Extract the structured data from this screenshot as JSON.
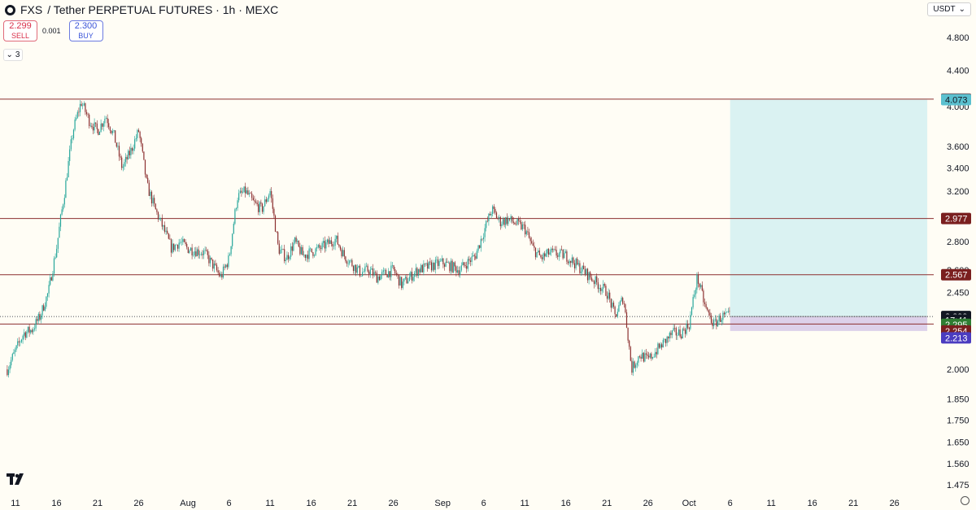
{
  "header": {
    "symbol": "FXS",
    "title_rest": "/ Tether PERPETUAL FUTURES · 1h · MEXC"
  },
  "trade": {
    "sell_price": "2.299",
    "sell_label": "SELL",
    "spread": "0.001",
    "buy_price": "2.300",
    "buy_label": "BUY"
  },
  "indicators": {
    "count": "3"
  },
  "currency": "USDT",
  "colors": {
    "background": "#fffdf5",
    "up": "#26a69a",
    "down": "#8b2f2f",
    "profit_zone": "#cdeef0",
    "stop_zone": "#d7c9e8",
    "level_line": "#8b2f2f"
  },
  "chart_data": {
    "type": "candlestick",
    "y_axis": {
      "scale": "log",
      "ticks": [
        "4.800",
        "4.400",
        "4.000",
        "3.600",
        "3.400",
        "3.200",
        "2.977",
        "2.800",
        "2.600",
        "2.450",
        "2.299",
        "2.000",
        "1.850",
        "1.750",
        "1.650",
        "1.560",
        "1.475"
      ]
    },
    "x_axis": {
      "ticks": [
        "11",
        "16",
        "21",
        "26",
        "Aug",
        "6",
        "11",
        "16",
        "21",
        "26",
        "Sep",
        "6",
        "11",
        "16",
        "21",
        "26",
        "Oct",
        "6",
        "11",
        "16",
        "21",
        "26"
      ]
    },
    "x_axis_dates": [
      "2024-07-11",
      "2024-07-16",
      "2024-07-21",
      "2024-07-26",
      "2024-08-01",
      "2024-08-06",
      "2024-08-11",
      "2024-08-16",
      "2024-08-21",
      "2024-08-26",
      "2024-09-01",
      "2024-09-06",
      "2024-09-11",
      "2024-09-16",
      "2024-09-21",
      "2024-09-26",
      "2024-10-01",
      "2024-10-06",
      "2024-10-11",
      "2024-10-16",
      "2024-10-21",
      "2024-10-26"
    ],
    "price_series": {
      "dates": [
        "2024-07-10",
        "2024-07-12",
        "2024-07-13",
        "2024-07-14",
        "2024-07-15",
        "2024-07-16",
        "2024-07-17",
        "2024-07-18",
        "2024-07-19",
        "2024-07-20",
        "2024-07-21",
        "2024-07-22",
        "2024-07-23",
        "2024-07-24",
        "2024-07-25",
        "2024-07-26",
        "2024-07-27",
        "2024-07-28",
        "2024-07-29",
        "2024-07-30",
        "2024-07-31",
        "2024-08-01",
        "2024-08-03",
        "2024-08-05",
        "2024-08-06",
        "2024-08-07",
        "2024-08-08",
        "2024-08-09",
        "2024-08-10",
        "2024-08-11",
        "2024-08-12",
        "2024-08-13",
        "2024-08-14",
        "2024-08-15",
        "2024-08-17",
        "2024-08-19",
        "2024-08-20",
        "2024-08-22",
        "2024-08-23",
        "2024-08-24",
        "2024-08-26",
        "2024-08-27",
        "2024-08-29",
        "2024-09-01",
        "2024-09-03",
        "2024-09-05",
        "2024-09-07",
        "2024-09-08",
        "2024-09-09",
        "2024-09-11",
        "2024-09-12",
        "2024-09-13",
        "2024-09-14",
        "2024-09-16",
        "2024-09-18",
        "2024-09-20",
        "2024-09-21",
        "2024-09-22",
        "2024-09-23",
        "2024-09-24",
        "2024-09-25",
        "2024-09-26",
        "2024-09-27",
        "2024-09-28",
        "2024-09-29",
        "2024-09-30",
        "2024-10-01",
        "2024-10-02",
        "2024-10-03",
        "2024-10-04",
        "2024-10-05",
        "2024-10-06"
      ],
      "close": [
        2.0,
        2.2,
        2.22,
        2.3,
        2.45,
        2.75,
        3.2,
        3.75,
        4.05,
        3.85,
        3.75,
        3.9,
        3.7,
        3.4,
        3.55,
        3.75,
        3.25,
        3.05,
        2.9,
        2.75,
        2.8,
        2.75,
        2.72,
        2.55,
        2.68,
        3.15,
        3.2,
        3.1,
        3.05,
        3.2,
        2.75,
        2.68,
        2.8,
        2.7,
        2.75,
        2.82,
        2.7,
        2.58,
        2.6,
        2.55,
        2.6,
        2.5,
        2.6,
        2.65,
        2.6,
        2.7,
        3.05,
        2.95,
        2.97,
        2.9,
        2.75,
        2.68,
        2.72,
        2.7,
        2.6,
        2.5,
        2.45,
        2.3,
        2.42,
        2.0,
        2.08,
        2.05,
        2.1,
        2.15,
        2.2,
        2.2,
        2.25,
        2.55,
        2.35,
        2.25,
        2.3,
        2.299
      ]
    },
    "horizontal_levels": [
      4.079,
      2.977,
      2.567,
      2.254
    ],
    "position_tool": {
      "type": "long",
      "start_date": "2024-10-06",
      "end_date": "2024-10-30",
      "entry": 2.299,
      "target": 4.073,
      "stop": 2.213
    },
    "price_labels": [
      {
        "text": "4.079",
        "price": 4.079,
        "bg": "#7a1f1f",
        "color": "#ffffff"
      },
      {
        "text": "4.073",
        "price": 4.073,
        "bg": "#5bc0cf",
        "color": "#131722"
      },
      {
        "text": "2.977",
        "price": 2.977,
        "bg": "#7a1f1f",
        "color": "#ffffff"
      },
      {
        "text": "2.567",
        "price": 2.567,
        "bg": "#7a1f1f",
        "color": "#ffffff"
      },
      {
        "text": "2.299",
        "price": 2.299,
        "bg": "#131722",
        "color": "#ffffff"
      },
      {
        "text": "17:41",
        "price": 2.278,
        "bg": "#131722",
        "color": "#ffffff"
      },
      {
        "text": "2.295",
        "price": 2.252,
        "bg": "#2e7d32",
        "color": "#ffffff"
      },
      {
        "text": "2.254",
        "price": 2.213,
        "bg": "#7a1f1f",
        "color": "#ffffff"
      },
      {
        "text": "2.213",
        "price": 2.173,
        "bg": "#4b3cc0",
        "color": "#ffffff"
      }
    ]
  }
}
